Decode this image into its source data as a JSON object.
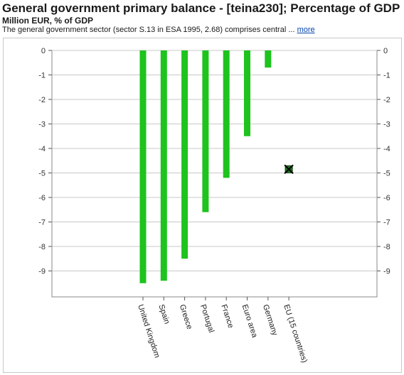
{
  "header": {
    "title": "General government primary balance - [teina230]; Percentage of GDP",
    "subtitle": "Million EUR, % of GDP",
    "description": "The general government sector (sector S.13 in ESA 1995, 2.68) comprises central ...",
    "more_link": "more"
  },
  "colors": {
    "bar": "#1ec31e",
    "grid": "#c8c8c8",
    "marker": "#1f7a1f"
  },
  "chart_data": {
    "type": "bar",
    "categories": [
      "United Kingdom",
      "Spain",
      "Greece",
      "Portugal",
      "France",
      "Euro area",
      "Germany",
      "EU (15 countries)"
    ],
    "values": [
      -9.5,
      -9.4,
      -8.5,
      -6.6,
      -5.2,
      -3.5,
      -0.7,
      null
    ],
    "marker": {
      "category": "EU (15 countries)",
      "value": -4.85
    },
    "ylim": [
      -10,
      0
    ],
    "yticks": [
      0,
      -1,
      -2,
      -3,
      -4,
      -5,
      -6,
      -7,
      -8,
      -9
    ],
    "grid": true,
    "title": "",
    "xlabel": "",
    "ylabel": ""
  }
}
